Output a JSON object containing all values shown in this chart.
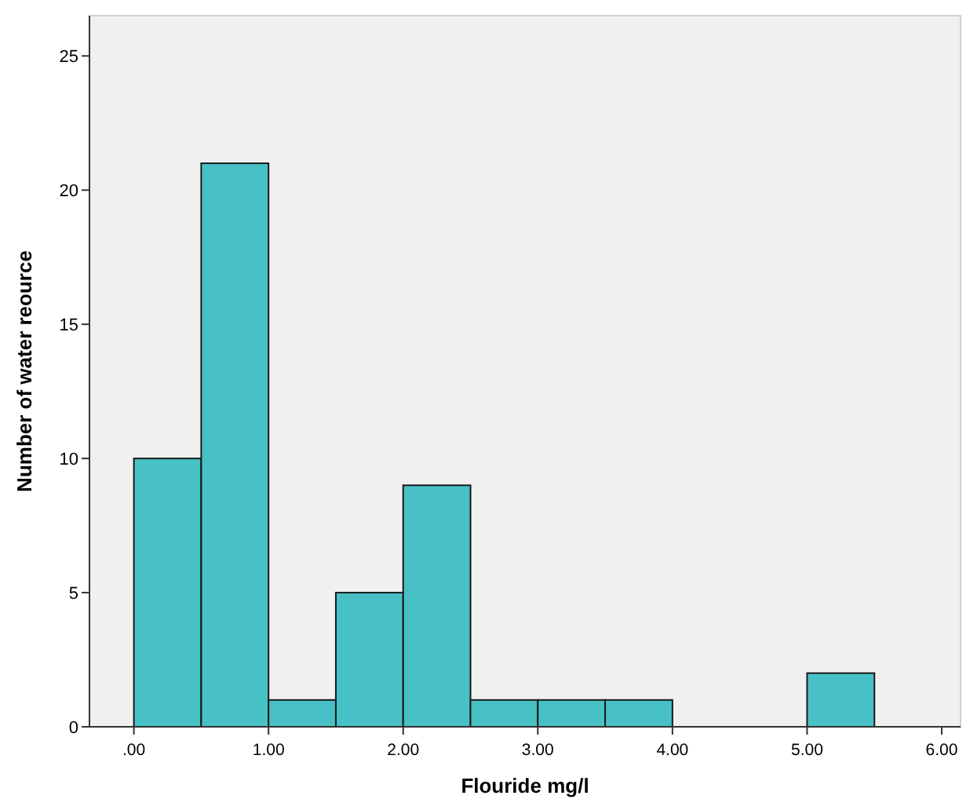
{
  "chart_data": {
    "type": "histogram",
    "xlabel": "Flouride mg/l",
    "ylabel": "Number of water reource",
    "bins": [
      0,
      0.5,
      1,
      1.5,
      2,
      2.5,
      3,
      3.5,
      4,
      4.5,
      5,
      5.5
    ],
    "values": [
      10,
      21,
      1,
      5,
      9,
      1,
      1,
      1,
      0,
      0,
      2
    ],
    "color": "#48c1c6",
    "xlim": [
      -0.33,
      6.14
    ],
    "ylim": [
      0,
      26.5
    ],
    "xticks": [
      {
        "value": 0,
        "label": ".00"
      },
      {
        "value": 1,
        "label": "1.00"
      },
      {
        "value": 2,
        "label": "2.00"
      },
      {
        "value": 3,
        "label": "3.00"
      },
      {
        "value": 4,
        "label": "4.00"
      },
      {
        "value": 5,
        "label": "5.00"
      },
      {
        "value": 6,
        "label": "6.00"
      }
    ],
    "yticks": [
      0,
      5,
      10,
      15,
      20,
      25
    ],
    "grid": false
  }
}
